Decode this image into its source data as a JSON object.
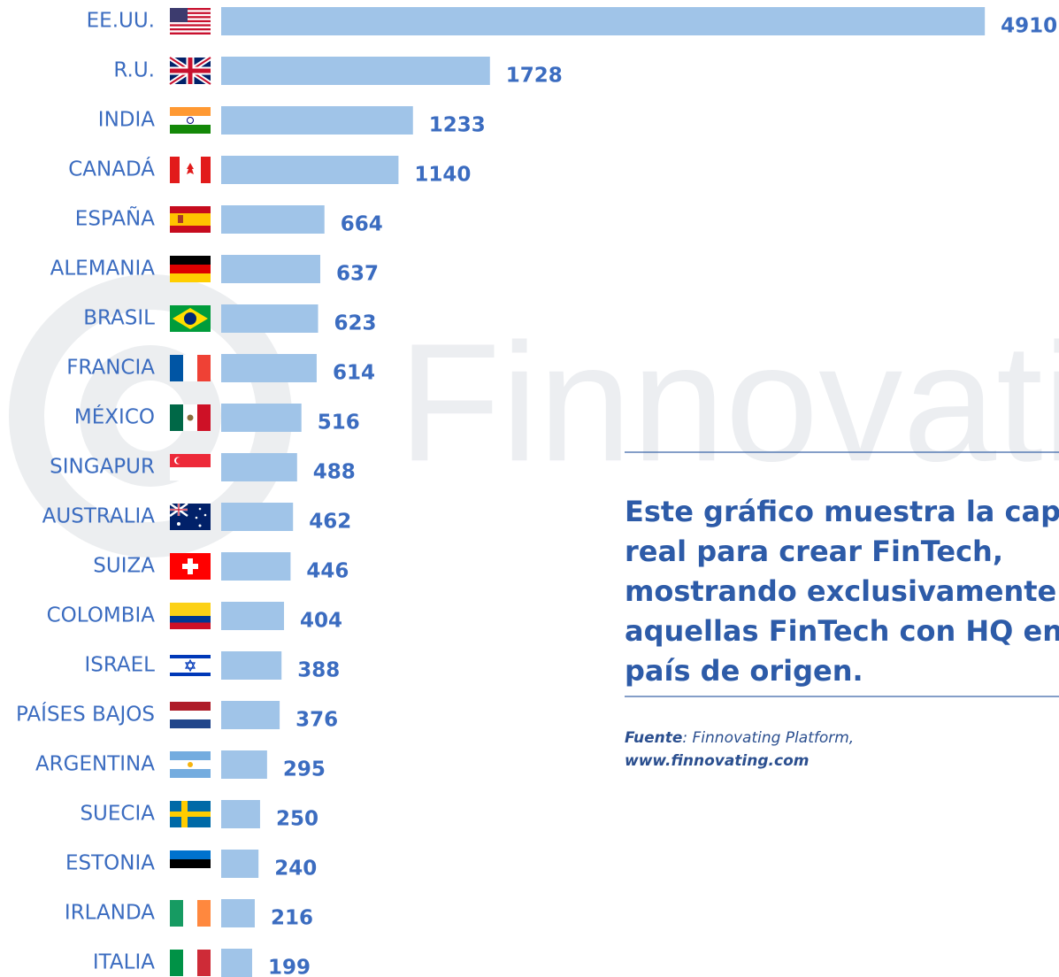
{
  "chart_data": {
    "type": "bar",
    "orientation": "horizontal",
    "categories": [
      "EE.UU.",
      "R.U.",
      "INDIA",
      "CANADÁ",
      "ESPAÑA",
      "ALEMANIA",
      "BRASIL",
      "FRANCIA",
      "MÉXICO",
      "SINGAPUR",
      "AUSTRALIA",
      "SUIZA",
      "COLOMBIA",
      "ISRAEL",
      "PAÍSES BAJOS",
      "ARGENTINA",
      "SUECIA",
      "ESTONIA",
      "IRLANDA",
      "ITALIA"
    ],
    "values": [
      4910,
      1728,
      1233,
      1140,
      664,
      637,
      623,
      614,
      516,
      488,
      462,
      446,
      404,
      388,
      376,
      295,
      250,
      240,
      216,
      199
    ],
    "color": "#a0c4e8",
    "xlim": [
      0,
      5000
    ],
    "watermark": "Finnovatin",
    "annotation": [
      "Este gráfico muestra la cap",
      "real para crear FinTech,",
      "mostrando exclusivamente",
      "aquellas FinTech con HQ en",
      "país de origen."
    ],
    "source": {
      "label": "Fuente",
      "text": ": Finnovating Platform,",
      "url": "www.finnovating.com"
    }
  }
}
